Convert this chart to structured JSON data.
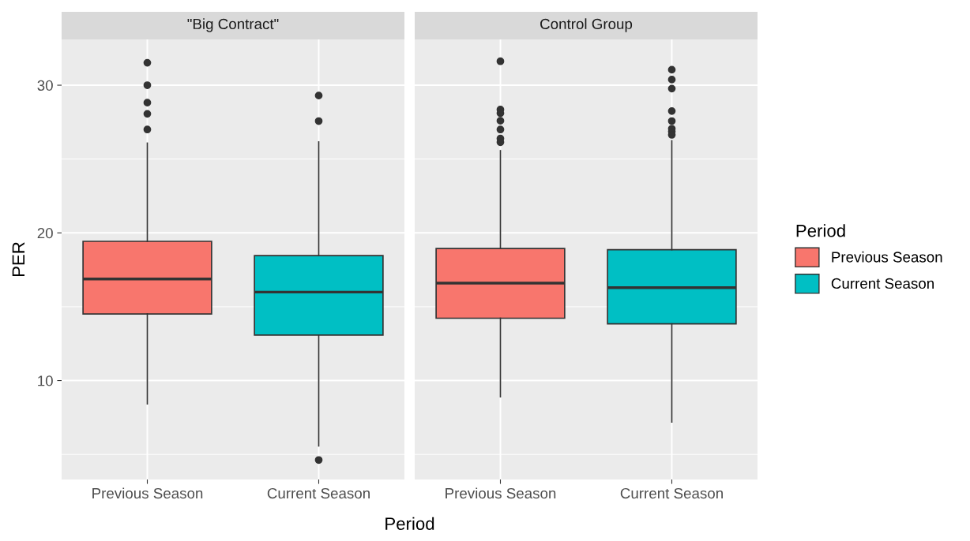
{
  "chart_data": [
    {
      "type": "box",
      "title": "\"Big Contract\"",
      "xlabel": "Period",
      "ylabel": "PER",
      "categories": [
        "Previous Season",
        "Current Season"
      ],
      "ylim": [
        3.3,
        33.1
      ],
      "yticks": [
        10,
        20,
        30
      ],
      "grid": true,
      "legend": "right",
      "legend_title": "Period",
      "series": [
        {
          "name": "Previous Season",
          "color": "#f8766d",
          "boxes": [
            {
              "low": 8.42,
              "q1": 14.51,
              "median": 16.88,
              "q3": 19.43,
              "high": 26.08,
              "outliers": [
                31.52,
                30.0,
                28.82,
                28.06,
                27.0
              ]
            },
            null
          ]
        },
        {
          "name": "Current Season",
          "color": "#00bfc4",
          "boxes": [
            null,
            {
              "low": 5.57,
              "q1": 13.08,
              "median": 15.99,
              "q3": 18.46,
              "high": 26.16,
              "outliers": [
                29.3,
                27.57,
                4.62
              ]
            }
          ]
        }
      ]
    },
    {
      "type": "box",
      "title": "Control Group",
      "categories": [
        "Previous Season",
        "Current Season"
      ],
      "ylim": [
        3.3,
        33.1
      ],
      "yticks": [
        10,
        20,
        30
      ],
      "grid": true,
      "tick_labels": "x",
      "series": [
        {
          "color": "#f8766d",
          "boxes": [
            {
              "low": 8.9,
              "q1": 14.22,
              "median": 16.6,
              "q3": 18.94,
              "high": 25.57,
              "outliers": [
                31.62,
                28.35,
                28.1,
                27.59,
                27.0,
                26.39,
                26.14
              ]
            },
            null
          ]
        },
        {
          "color": "#00bfc4",
          "boxes": [
            null,
            {
              "low": 7.19,
              "q1": 13.84,
              "median": 16.29,
              "q3": 18.86,
              "high": 26.24,
              "outliers": [
                31.05,
                30.38,
                29.77,
                28.25,
                27.57,
                27.05,
                26.86,
                26.64
              ]
            }
          ]
        }
      ]
    }
  ]
}
